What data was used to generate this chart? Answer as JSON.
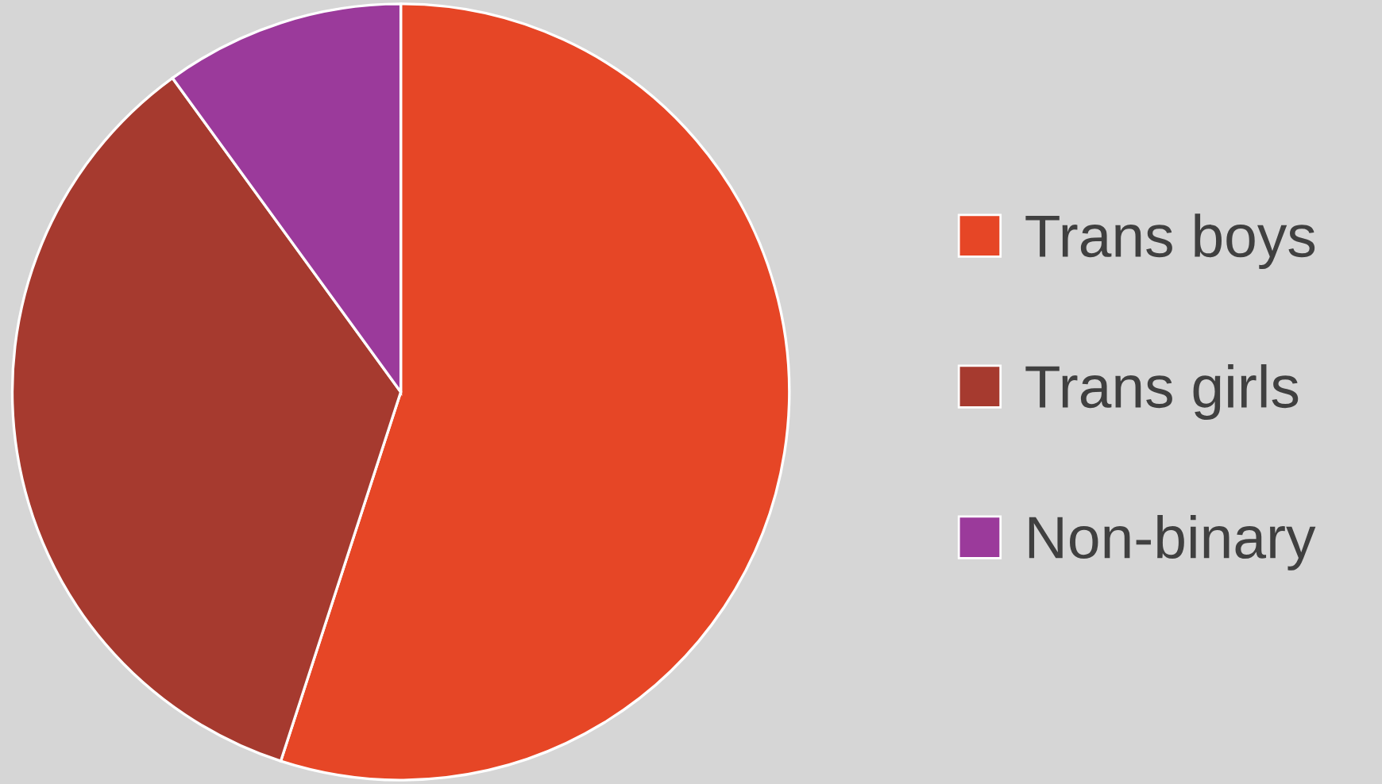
{
  "chart_data": {
    "type": "pie",
    "categories": [
      "Trans boys",
      "Trans girls",
      "Non-binary"
    ],
    "values": [
      55,
      35,
      10
    ],
    "colors": [
      "#e64626",
      "#a63a2f",
      "#9b3a9b"
    ],
    "legend": "right"
  }
}
